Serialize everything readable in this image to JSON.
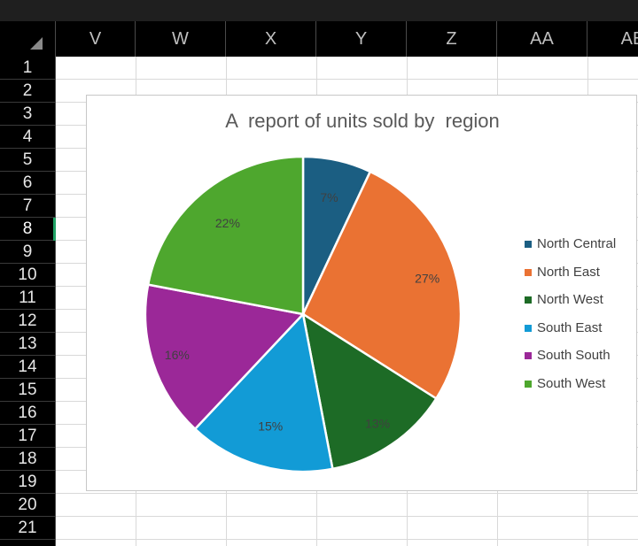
{
  "columns": [
    "V",
    "W",
    "X",
    "Y",
    "Z",
    "AA",
    "AB"
  ],
  "rows": [
    "1",
    "2",
    "3",
    "4",
    "5",
    "6",
    "7",
    "8",
    "9",
    "10",
    "11",
    "12",
    "13",
    "14",
    "15",
    "16",
    "17",
    "18",
    "19",
    "20",
    "21"
  ],
  "selected_row": "8",
  "chart_data": {
    "type": "pie",
    "title": "A  report of units sold by  region",
    "categories": [
      "North Central",
      "North East",
      "North West",
      "South East",
      "South South",
      "South West"
    ],
    "values": [
      7,
      27,
      13,
      15,
      16,
      22
    ],
    "labels": [
      "7%",
      "27%",
      "13%",
      "15%",
      "16%",
      "22%"
    ],
    "colors": [
      "#1b5e82",
      "#ea7233",
      "#1d6b26",
      "#129bd6",
      "#9b2898",
      "#4ea72e"
    ],
    "legend_position": "right"
  }
}
